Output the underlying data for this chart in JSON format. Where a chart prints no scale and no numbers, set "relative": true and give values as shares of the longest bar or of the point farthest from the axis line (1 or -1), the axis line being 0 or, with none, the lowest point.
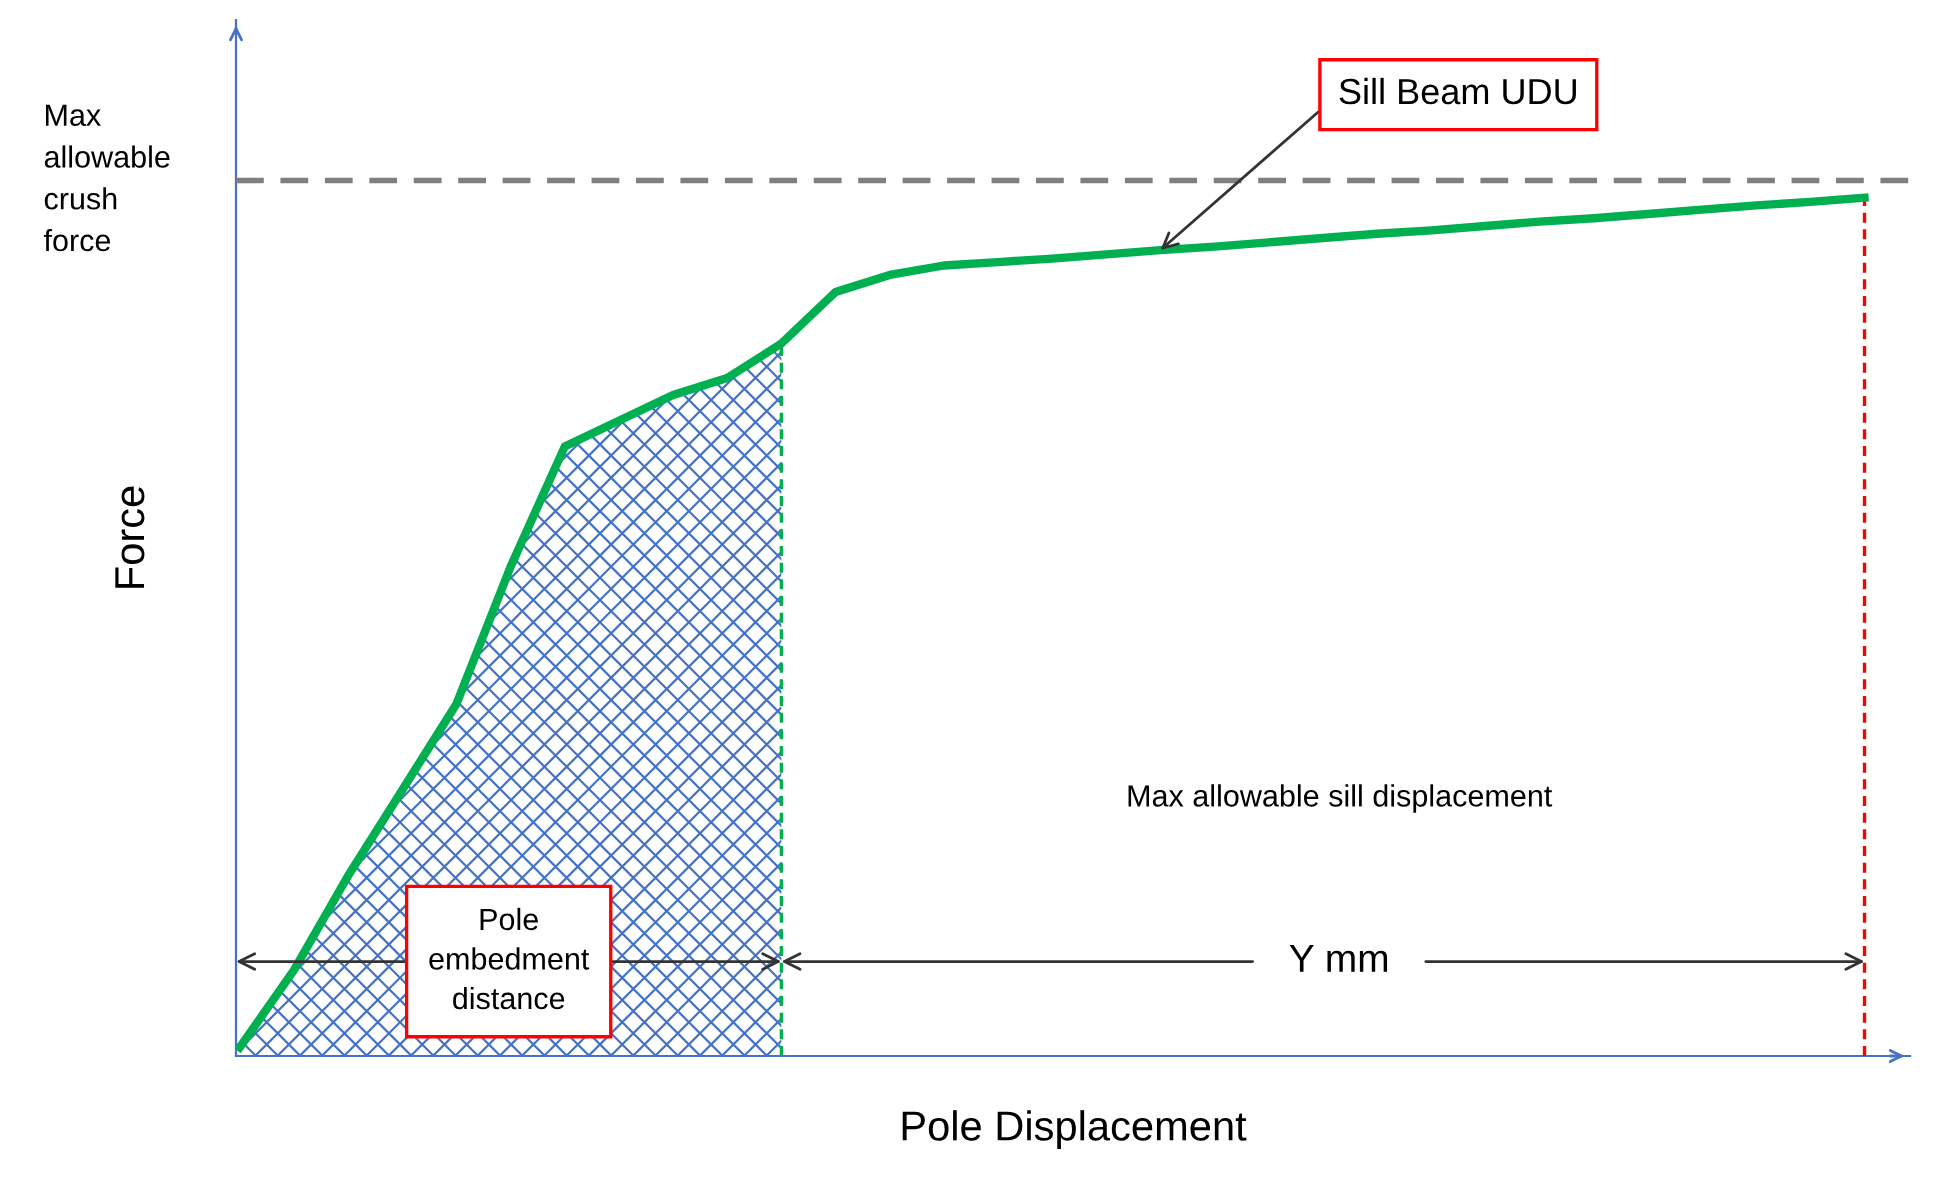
{
  "chart_data": {
    "type": "line",
    "relative": true,
    "xlabel": "Pole Displacement",
    "ylabel": "Force",
    "categories": [
      null,
      null,
      null,
      null,
      null,
      null,
      null,
      null,
      null,
      null,
      null,
      null,
      null,
      null,
      null,
      null,
      null,
      null,
      null,
      null,
      null,
      null,
      null,
      null,
      null,
      null,
      null,
      null,
      null,
      null,
      null
    ],
    "series": [
      {
        "color": "#00b050",
        "values": [
          0.01,
          0.1,
          0.21,
          0.31,
          0.41,
          0.57,
          0.71,
          0.74,
          0.77,
          0.79,
          0.83,
          0.89,
          0.91,
          0.921,
          0.925,
          0.929,
          0.934,
          0.939,
          0.943,
          0.948,
          0.953,
          0.958,
          0.962,
          0.967,
          0.972,
          0.976,
          0.981,
          0.986,
          0.991,
          0.995,
          1.0
        ]
      },
      {
        "type": "area",
        "color": "#4472c4",
        "values": [
          0.01,
          0.1,
          0.21,
          0.31,
          0.41,
          0.57,
          0.71,
          0.74,
          0.77,
          0.79,
          0.83,
          null,
          null,
          null,
          null,
          null,
          null,
          null,
          null,
          null,
          null,
          null,
          null,
          null,
          null,
          null,
          null,
          null,
          null,
          null,
          null
        ]
      }
    ],
    "ref_lines": [
      {
        "axis": "y",
        "value": 1.02,
        "label": "Max allowable crush force",
        "color": "#7f7f7f",
        "line_style": "dashed"
      }
    ],
    "annotations": [
      "Sill Beam UDU",
      "Pole embedment distance",
      "Max allowable sill displacement",
      "Y mm"
    ],
    "grid": false,
    "legend": false,
    "marker": "none",
    "line_style": "solid"
  }
}
